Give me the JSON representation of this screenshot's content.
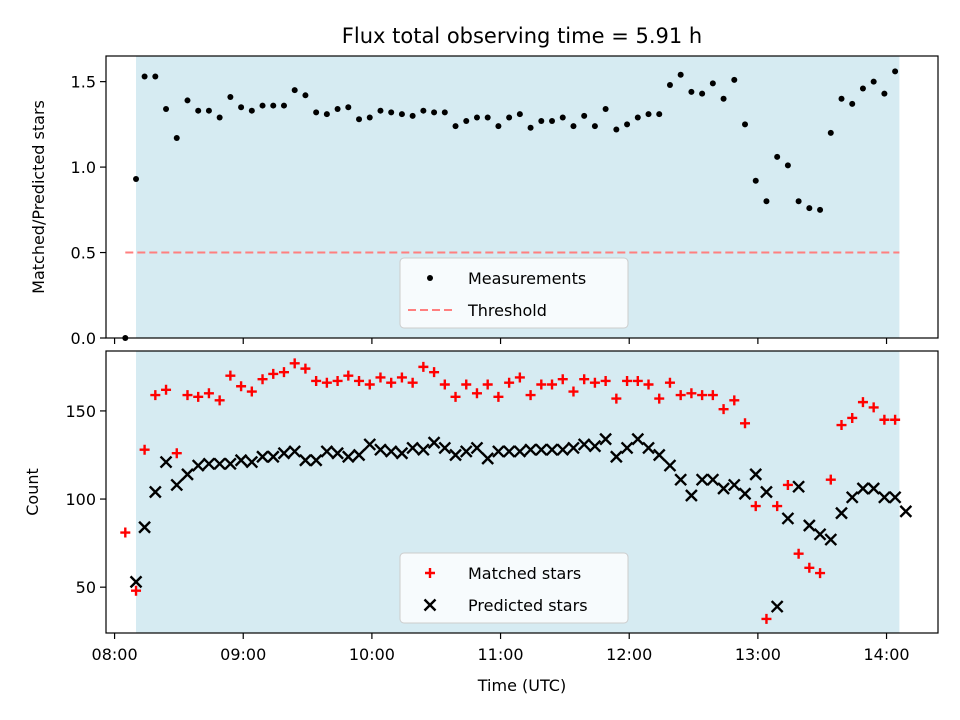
{
  "chart_data": [
    {
      "type": "scatter",
      "title": "Flux total observing time = 5.91 h",
      "xlabel": "",
      "ylabel": "Matched/Predicted stars",
      "x_range": [
        "07:56",
        "14:24"
      ],
      "ylim": [
        0,
        1.65
      ],
      "yticks": [
        "0.0",
        "0.5",
        "1.0",
        "1.5"
      ],
      "legend_position": "lower center",
      "shaded_span": [
        "08:10",
        "14:06"
      ],
      "shaded_color": "#add8e6",
      "series": [
        {
          "name": "Measurements",
          "marker": "dot",
          "color": "#000000",
          "points": [
            [
              "08:05",
              0.0
            ],
            [
              "08:10",
              0.93
            ],
            [
              "08:14",
              1.53
            ],
            [
              "08:19",
              1.53
            ],
            [
              "08:24",
              1.34
            ],
            [
              "08:29",
              1.17
            ],
            [
              "08:34",
              1.39
            ],
            [
              "08:39",
              1.33
            ],
            [
              "08:44",
              1.33
            ],
            [
              "08:49",
              1.29
            ],
            [
              "08:54",
              1.41
            ],
            [
              "08:59",
              1.35
            ],
            [
              "09:04",
              1.33
            ],
            [
              "09:09",
              1.36
            ],
            [
              "09:14",
              1.36
            ],
            [
              "09:19",
              1.36
            ],
            [
              "09:24",
              1.45
            ],
            [
              "09:29",
              1.42
            ],
            [
              "09:34",
              1.32
            ],
            [
              "09:39",
              1.31
            ],
            [
              "09:44",
              1.34
            ],
            [
              "09:49",
              1.35
            ],
            [
              "09:54",
              1.28
            ],
            [
              "09:59",
              1.29
            ],
            [
              "10:04",
              1.33
            ],
            [
              "10:09",
              1.32
            ],
            [
              "10:14",
              1.31
            ],
            [
              "10:19",
              1.3
            ],
            [
              "10:24",
              1.33
            ],
            [
              "10:29",
              1.32
            ],
            [
              "10:34",
              1.32
            ],
            [
              "10:39",
              1.24
            ],
            [
              "10:44",
              1.27
            ],
            [
              "10:49",
              1.29
            ],
            [
              "10:54",
              1.29
            ],
            [
              "10:59",
              1.24
            ],
            [
              "11:04",
              1.29
            ],
            [
              "11:09",
              1.31
            ],
            [
              "11:14",
              1.23
            ],
            [
              "11:19",
              1.27
            ],
            [
              "11:24",
              1.27
            ],
            [
              "11:29",
              1.29
            ],
            [
              "11:34",
              1.24
            ],
            [
              "11:39",
              1.3
            ],
            [
              "11:44",
              1.24
            ],
            [
              "11:49",
              1.34
            ],
            [
              "11:54",
              1.22
            ],
            [
              "11:59",
              1.25
            ],
            [
              "12:04",
              1.29
            ],
            [
              "12:09",
              1.31
            ],
            [
              "12:14",
              1.31
            ],
            [
              "12:19",
              1.48
            ],
            [
              "12:24",
              1.54
            ],
            [
              "12:29",
              1.44
            ],
            [
              "12:34",
              1.43
            ],
            [
              "12:39",
              1.49
            ],
            [
              "12:44",
              1.4
            ],
            [
              "12:49",
              1.51
            ],
            [
              "12:54",
              1.25
            ],
            [
              "12:59",
              0.92
            ],
            [
              "13:04",
              0.8
            ],
            [
              "13:09",
              1.06
            ],
            [
              "13:14",
              1.01
            ],
            [
              "13:19",
              0.8
            ],
            [
              "13:24",
              0.76
            ],
            [
              "13:29",
              0.75
            ],
            [
              "13:34",
              1.2
            ],
            [
              "13:39",
              1.4
            ],
            [
              "13:44",
              1.37
            ],
            [
              "13:49",
              1.46
            ],
            [
              "13:54",
              1.5
            ],
            [
              "13:59",
              1.43
            ],
            [
              "14:04",
              1.56
            ]
          ]
        },
        {
          "name": "Threshold",
          "style": "dashed",
          "color": "#ff7f7f",
          "points": [
            [
              "08:05",
              0.5
            ],
            [
              "14:06",
              0.5
            ]
          ]
        }
      ]
    },
    {
      "type": "scatter",
      "title": "",
      "xlabel": "Time (UTC)",
      "ylabel": "Count",
      "x_range": [
        "07:56",
        "14:24"
      ],
      "xticks": [
        "08:00",
        "09:00",
        "10:00",
        "11:00",
        "12:00",
        "13:00",
        "14:00"
      ],
      "ylim": [
        24,
        184
      ],
      "yticks": [
        "50",
        "100",
        "150"
      ],
      "legend_position": "lower center",
      "shaded_span": [
        "08:10",
        "14:06"
      ],
      "shaded_color": "#add8e6",
      "series": [
        {
          "name": "Matched stars",
          "marker": "plus",
          "color": "#ff0000",
          "points": [
            [
              "08:05",
              81
            ],
            [
              "08:10",
              48
            ],
            [
              "08:14",
              128
            ],
            [
              "08:19",
              159
            ],
            [
              "08:24",
              162
            ],
            [
              "08:29",
              126
            ],
            [
              "08:34",
              159
            ],
            [
              "08:39",
              158
            ],
            [
              "08:44",
              160
            ],
            [
              "08:49",
              156
            ],
            [
              "08:54",
              170
            ],
            [
              "08:59",
              164
            ],
            [
              "09:04",
              161
            ],
            [
              "09:09",
              168
            ],
            [
              "09:14",
              171
            ],
            [
              "09:19",
              172
            ],
            [
              "09:24",
              177
            ],
            [
              "09:29",
              174
            ],
            [
              "09:34",
              167
            ],
            [
              "09:39",
              166
            ],
            [
              "09:44",
              167
            ],
            [
              "09:49",
              170
            ],
            [
              "09:54",
              167
            ],
            [
              "09:59",
              165
            ],
            [
              "10:04",
              169
            ],
            [
              "10:09",
              166
            ],
            [
              "10:14",
              169
            ],
            [
              "10:19",
              166
            ],
            [
              "10:24",
              175
            ],
            [
              "10:29",
              172
            ],
            [
              "10:34",
              165
            ],
            [
              "10:39",
              158
            ],
            [
              "10:44",
              165
            ],
            [
              "10:49",
              160
            ],
            [
              "10:54",
              165
            ],
            [
              "10:59",
              158
            ],
            [
              "11:04",
              166
            ],
            [
              "11:09",
              169
            ],
            [
              "11:14",
              159
            ],
            [
              "11:19",
              165
            ],
            [
              "11:24",
              165
            ],
            [
              "11:29",
              168
            ],
            [
              "11:34",
              161
            ],
            [
              "11:39",
              168
            ],
            [
              "11:44",
              166
            ],
            [
              "11:49",
              167
            ],
            [
              "11:54",
              157
            ],
            [
              "11:59",
              167
            ],
            [
              "12:04",
              167
            ],
            [
              "12:09",
              165
            ],
            [
              "12:14",
              157
            ],
            [
              "12:19",
              166
            ],
            [
              "12:24",
              159
            ],
            [
              "12:29",
              160
            ],
            [
              "12:34",
              159
            ],
            [
              "12:39",
              159
            ],
            [
              "12:44",
              151
            ],
            [
              "12:49",
              156
            ],
            [
              "12:54",
              143
            ],
            [
              "12:59",
              96
            ],
            [
              "13:04",
              32
            ],
            [
              "13:09",
              96
            ],
            [
              "13:14",
              108
            ],
            [
              "13:19",
              69
            ],
            [
              "13:24",
              61
            ],
            [
              "13:29",
              58
            ],
            [
              "13:34",
              111
            ],
            [
              "13:39",
              142
            ],
            [
              "13:44",
              146
            ],
            [
              "13:49",
              155
            ],
            [
              "13:54",
              152
            ],
            [
              "13:59",
              145
            ],
            [
              "14:04",
              145
            ]
          ]
        },
        {
          "name": "Predicted stars",
          "marker": "x",
          "color": "#000000",
          "points": [
            [
              "08:10",
              53
            ],
            [
              "08:14",
              84
            ],
            [
              "08:19",
              104
            ],
            [
              "08:24",
              121
            ],
            [
              "08:29",
              108
            ],
            [
              "08:34",
              114
            ],
            [
              "08:39",
              119
            ],
            [
              "08:44",
              120
            ],
            [
              "08:49",
              120
            ],
            [
              "08:54",
              120
            ],
            [
              "08:59",
              122
            ],
            [
              "09:04",
              121
            ],
            [
              "09:09",
              124
            ],
            [
              "09:14",
              124
            ],
            [
              "09:19",
              126
            ],
            [
              "09:24",
              127
            ],
            [
              "09:29",
              122
            ],
            [
              "09:34",
              122
            ],
            [
              "09:39",
              127
            ],
            [
              "09:44",
              126
            ],
            [
              "09:49",
              124
            ],
            [
              "09:54",
              125
            ],
            [
              "09:59",
              131
            ],
            [
              "10:04",
              128
            ],
            [
              "10:09",
              127
            ],
            [
              "10:14",
              126
            ],
            [
              "10:19",
              129
            ],
            [
              "10:24",
              128
            ],
            [
              "10:29",
              132
            ],
            [
              "10:34",
              129
            ],
            [
              "10:39",
              125
            ],
            [
              "10:44",
              127
            ],
            [
              "10:49",
              129
            ],
            [
              "10:54",
              123
            ],
            [
              "10:59",
              127
            ],
            [
              "11:04",
              127
            ],
            [
              "11:09",
              127
            ],
            [
              "11:14",
              128
            ],
            [
              "11:19",
              128
            ],
            [
              "11:24",
              128
            ],
            [
              "11:29",
              128
            ],
            [
              "11:34",
              129
            ],
            [
              "11:39",
              131
            ],
            [
              "11:44",
              130
            ],
            [
              "11:49",
              134
            ],
            [
              "11:54",
              124
            ],
            [
              "11:59",
              129
            ],
            [
              "12:04",
              134
            ],
            [
              "12:09",
              129
            ],
            [
              "12:14",
              125
            ],
            [
              "12:19",
              119
            ],
            [
              "12:24",
              111
            ],
            [
              "12:29",
              102
            ],
            [
              "12:34",
              111
            ],
            [
              "12:39",
              111
            ],
            [
              "12:44",
              106
            ],
            [
              "12:49",
              108
            ],
            [
              "12:54",
              103
            ],
            [
              "12:59",
              114
            ],
            [
              "13:04",
              104
            ],
            [
              "13:09",
              39
            ],
            [
              "13:14",
              89
            ],
            [
              "13:19",
              107
            ],
            [
              "13:24",
              85
            ],
            [
              "13:29",
              80
            ],
            [
              "13:34",
              77
            ],
            [
              "13:39",
              92
            ],
            [
              "13:44",
              101
            ],
            [
              "13:49",
              106
            ],
            [
              "13:54",
              106
            ],
            [
              "13:59",
              101
            ],
            [
              "14:04",
              101
            ],
            [
              "14:09",
              93
            ]
          ]
        }
      ]
    }
  ]
}
